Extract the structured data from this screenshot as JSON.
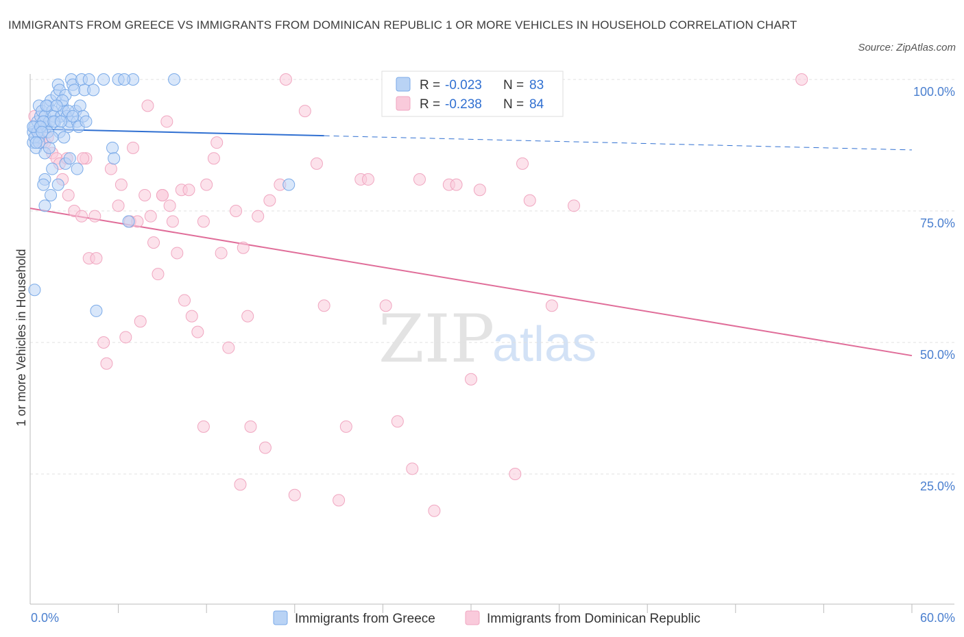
{
  "title": "IMMIGRANTS FROM GREECE VS IMMIGRANTS FROM DOMINICAN REPUBLIC 1 OR MORE VEHICLES IN HOUSEHOLD CORRELATION CHART",
  "source": "Source: ZipAtlas.com",
  "watermark": {
    "zip": "ZIP",
    "atlas": "atlas"
  },
  "chart_data": {
    "type": "scatter",
    "title": "IMMIGRANTS FROM GREECE VS IMMIGRANTS FROM DOMINICAN REPUBLIC 1 OR MORE VEHICLES IN HOUSEHOLD CORRELATION CHART",
    "xlabel": "",
    "ylabel": "1 or more Vehicles in Household",
    "xlim": [
      0,
      60
    ],
    "ylim": [
      0,
      100
    ],
    "x_tick_labels": [
      "0.0%",
      "60.0%"
    ],
    "y_ticks": [
      25,
      50,
      75,
      100
    ],
    "y_tick_labels": [
      "25.0%",
      "50.0%",
      "75.0%",
      "100.0%"
    ],
    "grid": "horizontal dashed",
    "legend_placement": "top-center and bottom",
    "series": [
      {
        "name": "Immigrants from Greece",
        "color": "#7aaae8",
        "fill": "#b9d3f5",
        "line_color": "#2f6fd1",
        "R": "-0.023",
        "N": "83",
        "trend": {
          "x": [
            0,
            20
          ],
          "y": [
            90.6,
            89.3
          ],
          "dashed_to": [
            60,
            86.6
          ]
        },
        "points": [
          [
            0.2,
            90
          ],
          [
            0.2,
            88
          ],
          [
            0.3,
            91
          ],
          [
            0.4,
            87
          ],
          [
            0.5,
            92
          ],
          [
            0.6,
            89
          ],
          [
            0.7,
            93
          ],
          [
            0.8,
            91
          ],
          [
            0.3,
            89
          ],
          [
            0.5,
            90
          ],
          [
            0.6,
            95
          ],
          [
            0.8,
            94
          ],
          [
            0.9,
            92
          ],
          [
            1.0,
            93
          ],
          [
            1.1,
            91
          ],
          [
            1.2,
            95
          ],
          [
            1.3,
            92
          ],
          [
            1.4,
            96
          ],
          [
            1.5,
            94
          ],
          [
            1.6,
            93
          ],
          [
            1.7,
            92
          ],
          [
            1.8,
            97
          ],
          [
            1.9,
            99
          ],
          [
            2.0,
            98
          ],
          [
            2.1,
            93
          ],
          [
            2.2,
            95
          ],
          [
            2.3,
            94
          ],
          [
            2.4,
            97
          ],
          [
            2.5,
            93
          ],
          [
            2.6,
            91
          ],
          [
            2.7,
            92
          ],
          [
            2.8,
            100
          ],
          [
            2.9,
            99
          ],
          [
            3.0,
            98
          ],
          [
            3.1,
            94
          ],
          [
            3.2,
            92
          ],
          [
            3.3,
            91
          ],
          [
            3.4,
            95
          ],
          [
            3.5,
            100
          ],
          [
            3.7,
            98
          ],
          [
            4.0,
            100
          ],
          [
            4.3,
            98
          ],
          [
            5.0,
            100
          ],
          [
            6.0,
            100
          ],
          [
            7.0,
            100
          ],
          [
            6.4,
            100
          ],
          [
            3.6,
            93
          ],
          [
            1.0,
            86
          ],
          [
            1.5,
            83
          ],
          [
            1.9,
            80
          ],
          [
            2.4,
            84
          ],
          [
            2.7,
            85
          ],
          [
            3.2,
            83
          ],
          [
            1.0,
            81
          ],
          [
            0.9,
            80
          ],
          [
            1.4,
            78
          ],
          [
            1.0,
            76
          ],
          [
            0.3,
            60
          ],
          [
            4.5,
            56
          ],
          [
            5.6,
            87
          ],
          [
            5.7,
            85
          ],
          [
            6.7,
            73
          ],
          [
            9.8,
            100
          ],
          [
            17.6,
            80
          ],
          [
            0.2,
            91
          ],
          [
            0.6,
            88
          ],
          [
            0.9,
            92
          ],
          [
            1.2,
            90
          ],
          [
            1.6,
            92
          ],
          [
            2.0,
            90
          ],
          [
            2.2,
            96
          ],
          [
            2.6,
            94
          ],
          [
            1.3,
            87
          ],
          [
            0.7,
            91
          ],
          [
            1.1,
            95
          ],
          [
            1.8,
            95
          ],
          [
            2.3,
            89
          ],
          [
            2.9,
            93
          ],
          [
            3.8,
            92
          ],
          [
            0.4,
            88
          ],
          [
            0.8,
            90
          ],
          [
            1.5,
            89
          ],
          [
            2.1,
            92
          ]
        ]
      },
      {
        "name": "Immigrants from Dominican Republic",
        "color": "#f0a6c0",
        "fill": "#f9cadb",
        "line_color": "#e06d99",
        "R": "-0.238",
        "N": "84",
        "trend": {
          "x": [
            0,
            60
          ],
          "y": [
            75.5,
            47.5
          ]
        },
        "points": [
          [
            0.3,
            93
          ],
          [
            0.5,
            90
          ],
          [
            0.8,
            88
          ],
          [
            1.0,
            88
          ],
          [
            1.2,
            89
          ],
          [
            1.5,
            86
          ],
          [
            1.8,
            85
          ],
          [
            2.0,
            84
          ],
          [
            2.2,
            81
          ],
          [
            2.6,
            78
          ],
          [
            3.0,
            75
          ],
          [
            3.5,
            74
          ],
          [
            3.8,
            85
          ],
          [
            4.0,
            66
          ],
          [
            4.5,
            66
          ],
          [
            5.0,
            50
          ],
          [
            5.2,
            46
          ],
          [
            5.5,
            83
          ],
          [
            6.0,
            76
          ],
          [
            6.2,
            80
          ],
          [
            6.5,
            51
          ],
          [
            6.8,
            73
          ],
          [
            7.0,
            87
          ],
          [
            7.5,
            54
          ],
          [
            7.8,
            78
          ],
          [
            8.2,
            74
          ],
          [
            8.4,
            69
          ],
          [
            8.7,
            63
          ],
          [
            9.0,
            78
          ],
          [
            9.3,
            92
          ],
          [
            9.5,
            76
          ],
          [
            9.7,
            73
          ],
          [
            10.0,
            67
          ],
          [
            10.3,
            79
          ],
          [
            10.5,
            58
          ],
          [
            10.8,
            79
          ],
          [
            11.0,
            55
          ],
          [
            11.4,
            52
          ],
          [
            11.8,
            73
          ],
          [
            12.0,
            80
          ],
          [
            12.5,
            85
          ],
          [
            12.7,
            88
          ],
          [
            13.0,
            67
          ],
          [
            13.5,
            49
          ],
          [
            14.0,
            75
          ],
          [
            14.5,
            68
          ],
          [
            14.8,
            55
          ],
          [
            15.5,
            74
          ],
          [
            16.0,
            30
          ],
          [
            16.3,
            77
          ],
          [
            17.0,
            80
          ],
          [
            17.4,
            100
          ],
          [
            18.0,
            21
          ],
          [
            18.7,
            94
          ],
          [
            19.5,
            84
          ],
          [
            20.0,
            57
          ],
          [
            21.0,
            20
          ],
          [
            21.5,
            34
          ],
          [
            22.5,
            81
          ],
          [
            23.0,
            81
          ],
          [
            24.2,
            57
          ],
          [
            25.0,
            35
          ],
          [
            26.0,
            26
          ],
          [
            26.5,
            81
          ],
          [
            27.5,
            18
          ],
          [
            28.5,
            80
          ],
          [
            29.0,
            80
          ],
          [
            30.0,
            43
          ],
          [
            30.6,
            79
          ],
          [
            33.0,
            25
          ],
          [
            33.5,
            84
          ],
          [
            34.0,
            77
          ],
          [
            35.5,
            57
          ],
          [
            37.0,
            76
          ],
          [
            52.5,
            100
          ],
          [
            9.0,
            78
          ],
          [
            11.8,
            34
          ],
          [
            14.3,
            23
          ],
          [
            15.0,
            34
          ],
          [
            8.0,
            95
          ],
          [
            4.4,
            74
          ],
          [
            7.3,
            73
          ],
          [
            2.5,
            85
          ],
          [
            3.6,
            85
          ]
        ]
      }
    ]
  },
  "legend": {
    "rows": [
      {
        "r_label": "R =",
        "r_value": "-0.023",
        "n_label": "N =",
        "n_value": "83"
      },
      {
        "r_label": "R =",
        "r_value": "-0.238",
        "n_label": "N =",
        "n_value": "84"
      }
    ]
  }
}
